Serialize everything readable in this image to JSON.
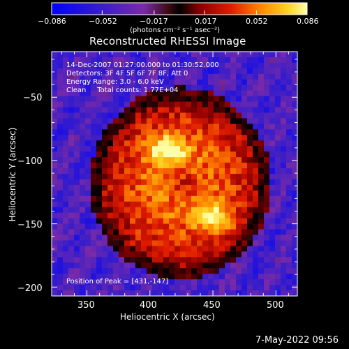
{
  "chart_data": {
    "type": "heatmap",
    "title": "Reconstructed RHESSI Image",
    "xlabel": "Heliocentric X (arcsec)",
    "ylabel": "Heliocentric Y (arcsec)",
    "xlim": [
      322,
      517
    ],
    "ylim": [
      -207,
      -14
    ],
    "x_ticks": [
      350,
      400,
      450,
      500
    ],
    "y_ticks": [
      -200,
      -150,
      -100,
      -50
    ],
    "x_tick_labels": [
      "350",
      "400",
      "450",
      "500"
    ],
    "y_tick_labels": [
      "−200",
      "−150",
      "−100",
      "−50"
    ],
    "colorbar": {
      "range": [
        -0.086,
        0.086
      ],
      "tick_values": [
        -0.086,
        -0.052,
        -0.017,
        0.017,
        0.052,
        0.086
      ],
      "tick_labels": [
        "−0.086",
        "−0.052",
        "−0.017",
        "0.017",
        "0.052",
        "0.086"
      ],
      "units": "(photons cm⁻² s⁻¹ asec⁻²)"
    },
    "info_lines": [
      "14-Dec-2007 01:27:00.000 to 01:30:52.000",
      "Detectors: 3F 4F 5F 6F 7F 8F, Att 0",
      "Energy Range: 3.0 - 6.0 keV",
      "Clean     Total counts: 1.77E+04"
    ],
    "peak_label": "Position of Peak = [431,-147]",
    "peak_position": [
      431,
      -147
    ],
    "sources": [
      {
        "x": 414,
        "y": -91,
        "intensity": 0.086
      },
      {
        "x": 450,
        "y": -145,
        "intensity": 0.082
      }
    ]
  },
  "footer": {
    "timestamp": "7-May-2022 09:56"
  }
}
